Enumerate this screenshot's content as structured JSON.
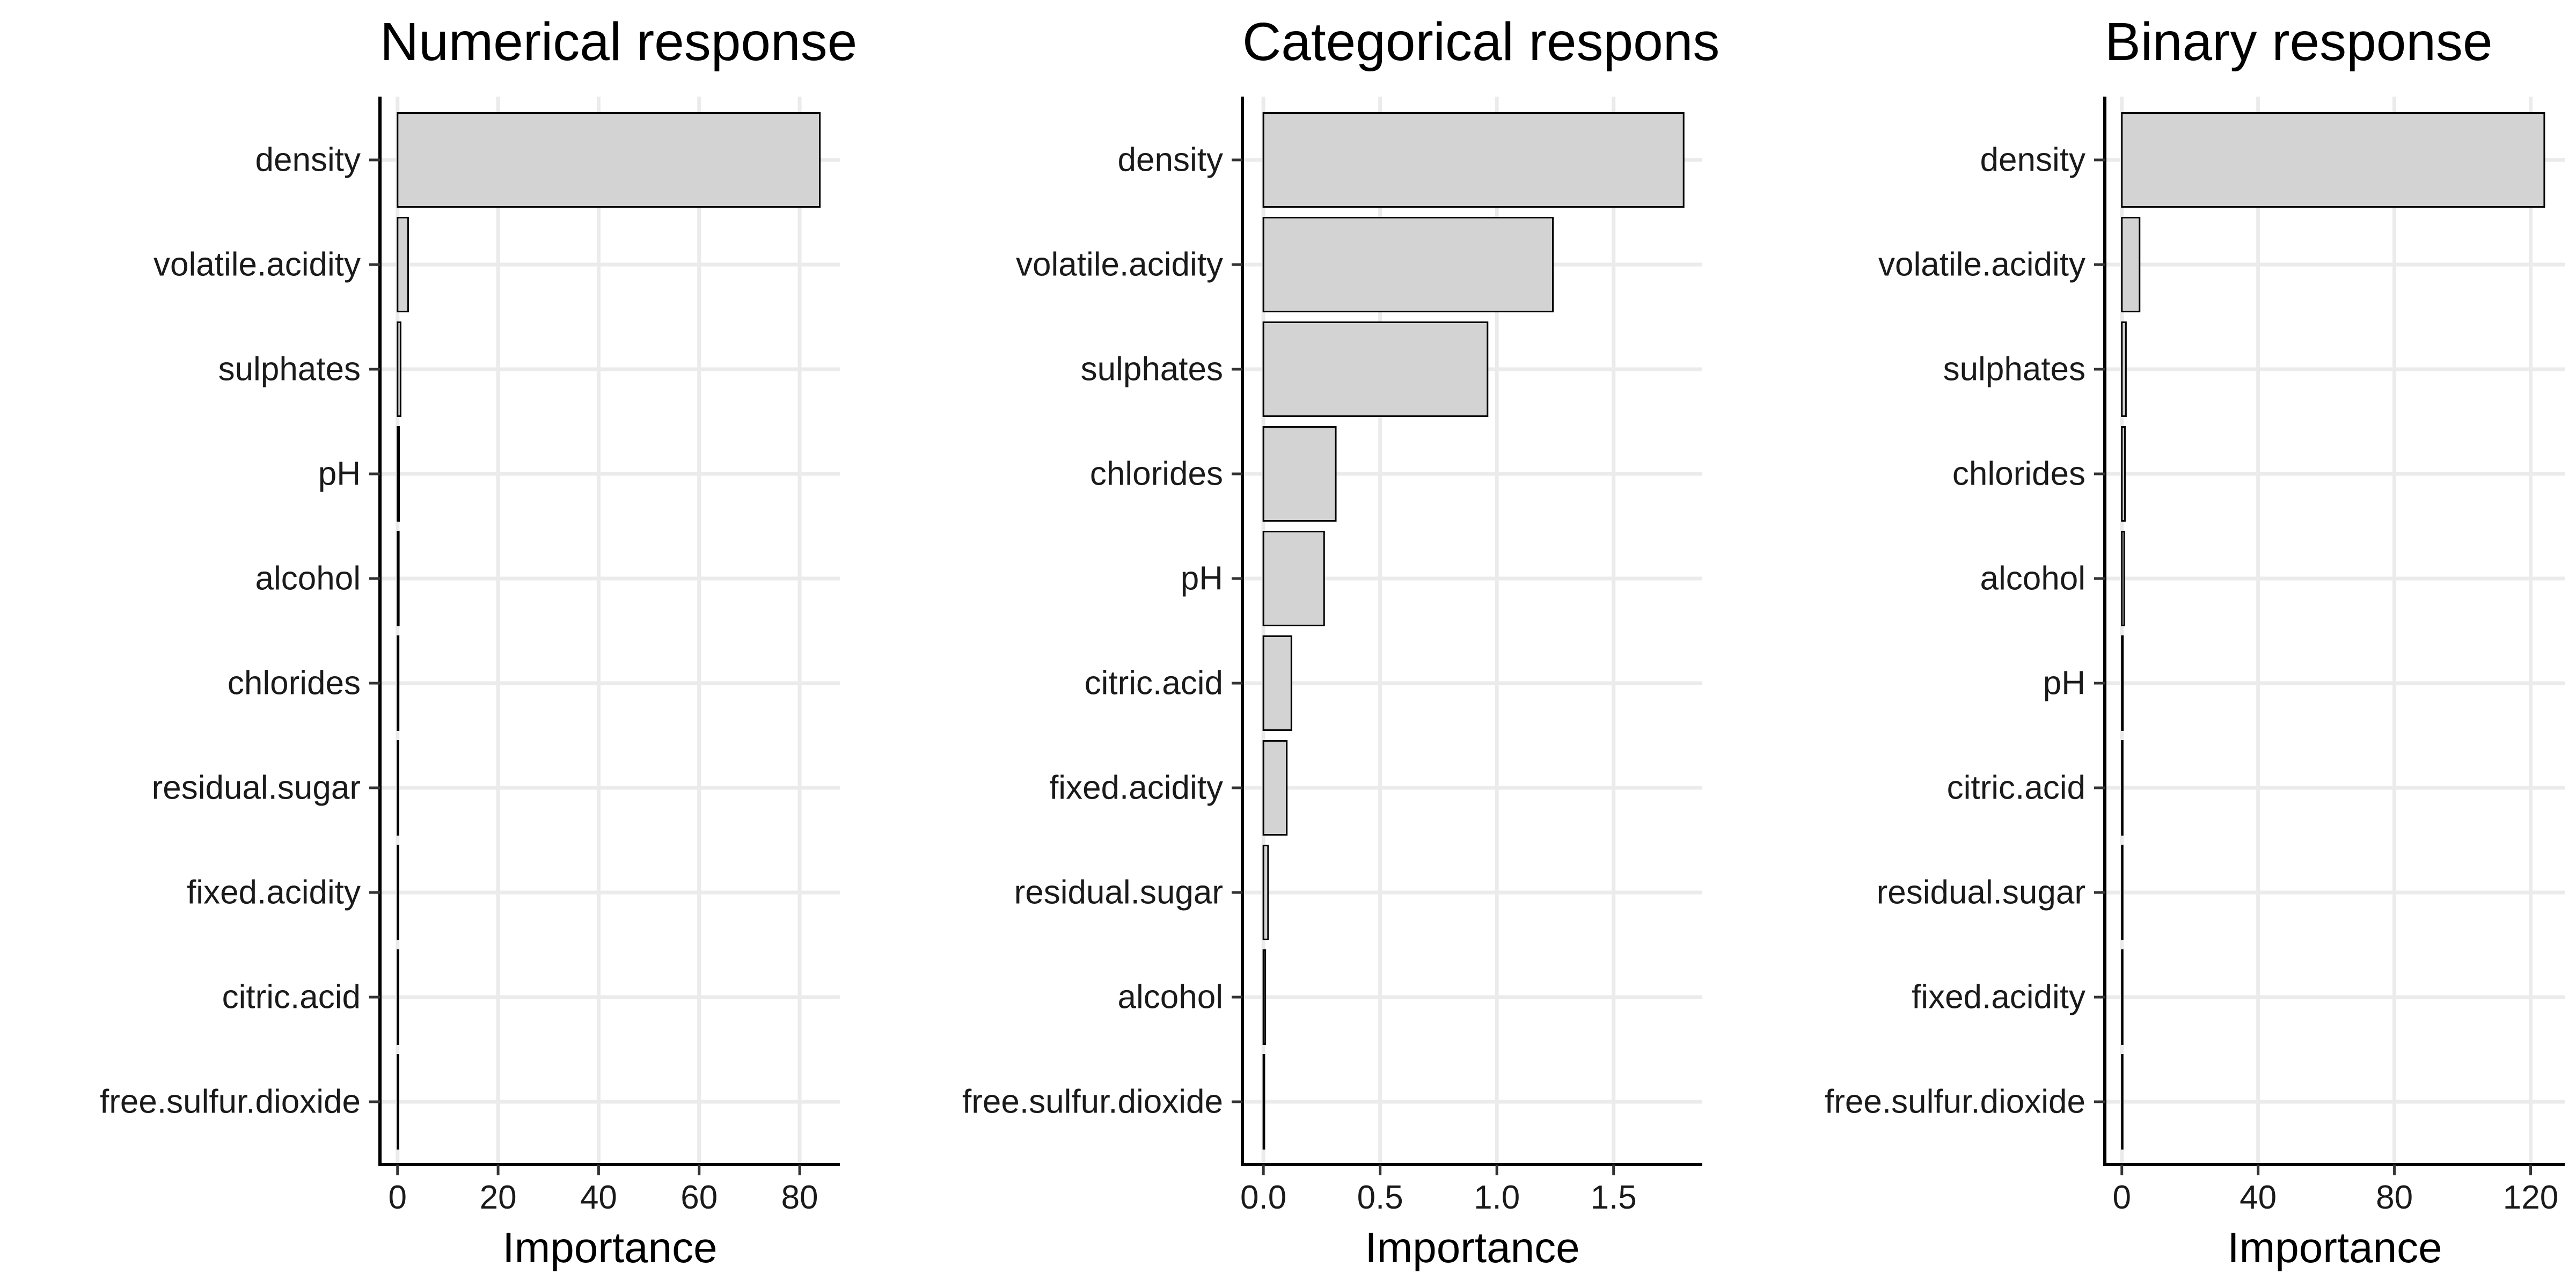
{
  "chart_data": [
    {
      "type": "bar",
      "orientation": "horizontal",
      "title": "Numerical response",
      "xlabel": "Importance",
      "ylabel": "",
      "categories": [
        "density",
        "volatile.acidity",
        "sulphates",
        "pH",
        "alcohol",
        "chlorides",
        "residual.sugar",
        "fixed.acidity",
        "citric.acid",
        "free.sulfur.dioxide"
      ],
      "values": [
        84,
        2.1,
        0.6,
        0.3,
        0.25,
        0.2,
        0.15,
        0.12,
        0.1,
        0.05
      ],
      "xlim": [
        -3.5,
        88
      ],
      "xticks": [
        0,
        20,
        40,
        60,
        80
      ],
      "xtick_labels": [
        "0",
        "20",
        "40",
        "60",
        "80"
      ],
      "grid": true,
      "bar_color": "#d3d3d3"
    },
    {
      "type": "bar",
      "orientation": "horizontal",
      "title": "Categorical respons",
      "xlabel": "Importance",
      "ylabel": "",
      "categories": [
        "density",
        "volatile.acidity",
        "sulphates",
        "chlorides",
        "pH",
        "citric.acid",
        "fixed.acidity",
        "residual.sugar",
        "alcohol",
        "free.sulfur.dioxide"
      ],
      "values": [
        1.8,
        1.24,
        0.96,
        0.31,
        0.26,
        0.12,
        0.1,
        0.02,
        0.008,
        0.004
      ],
      "xlim": [
        -0.09,
        1.88
      ],
      "xticks": [
        0.0,
        0.5,
        1.0,
        1.5
      ],
      "xtick_labels": [
        "0.0",
        "0.5",
        "1.0",
        "1.5"
      ],
      "grid": true,
      "bar_color": "#d3d3d3"
    },
    {
      "type": "bar",
      "orientation": "horizontal",
      "title": "Binary response",
      "xlabel": "Importance",
      "ylabel": "",
      "categories": [
        "density",
        "volatile.acidity",
        "sulphates",
        "chlorides",
        "alcohol",
        "pH",
        "citric.acid",
        "residual.sugar",
        "fixed.acidity",
        "free.sulfur.dioxide"
      ],
      "values": [
        124,
        5.2,
        1.2,
        0.9,
        0.7,
        0.3,
        0.25,
        0.2,
        0.15,
        0.1
      ],
      "xlim": [
        -5,
        130
      ],
      "xticks": [
        0,
        40,
        80,
        120
      ],
      "xtick_labels": [
        "0",
        "40",
        "80",
        "120"
      ],
      "grid": true,
      "bar_color": "#d3d3d3"
    }
  ]
}
